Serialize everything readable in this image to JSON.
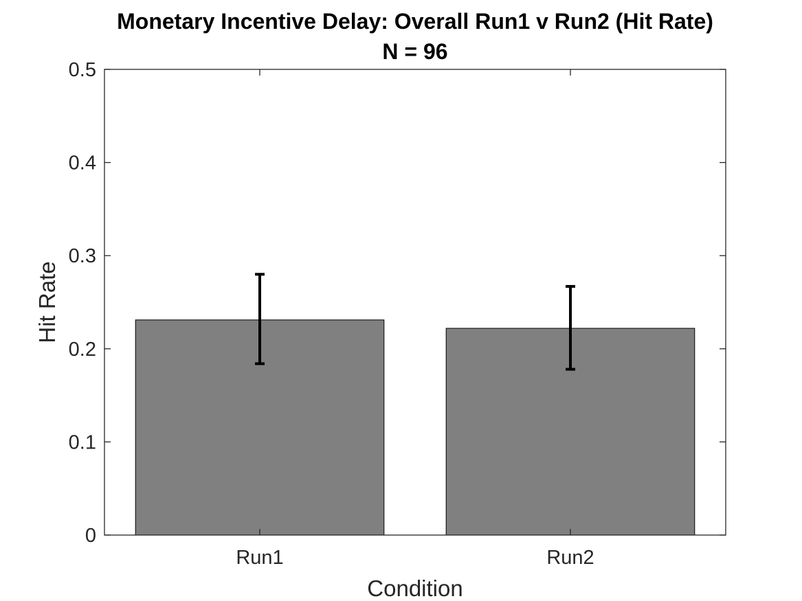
{
  "chart_data": {
    "type": "bar",
    "title": "Monetary Incentive Delay: Overall Run1 v Run2 (Hit Rate)",
    "subtitle": "N = 96",
    "xlabel": "Condition",
    "ylabel": "Hit Rate",
    "categories": [
      "Run1",
      "Run2"
    ],
    "values": [
      0.231,
      0.222
    ],
    "error_low": [
      0.184,
      0.178
    ],
    "error_high": [
      0.28,
      0.267
    ],
    "ylim": [
      0,
      0.5
    ],
    "yticks": [
      0,
      0.1,
      0.2,
      0.3,
      0.4,
      0.5
    ],
    "ytick_labels": [
      "0",
      "0.1",
      "0.2",
      "0.3",
      "0.4",
      "0.5"
    ],
    "grid": false,
    "bar_color": "#808080",
    "errorbar_color": "#000000",
    "axis_color": "#262626"
  }
}
